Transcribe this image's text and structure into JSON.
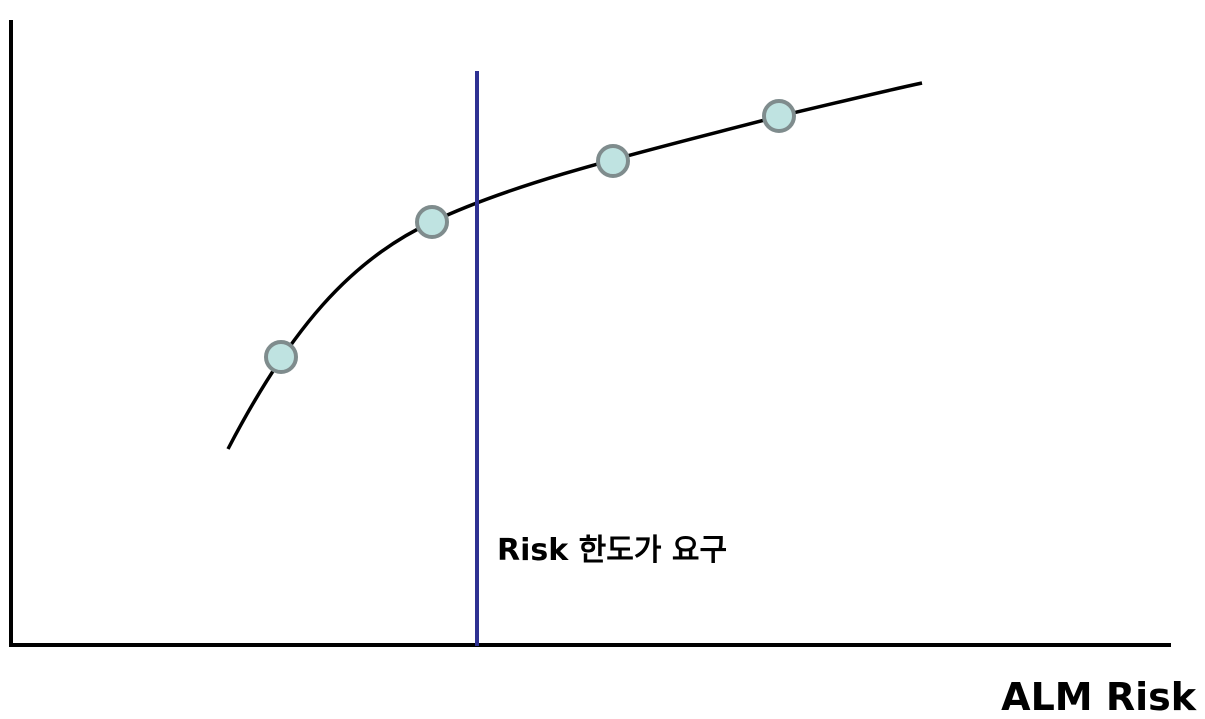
{
  "diagram": {
    "limit_label": "Risk 한도가 요구",
    "x_axis_label": "ALM Risk"
  },
  "colors": {
    "axis": "#000000",
    "curve": "#000000",
    "limit_line": "#2e3192",
    "marker_fill": "#bfe3e1",
    "marker_stroke": "#7f8c8d",
    "text": "#000000"
  }
}
